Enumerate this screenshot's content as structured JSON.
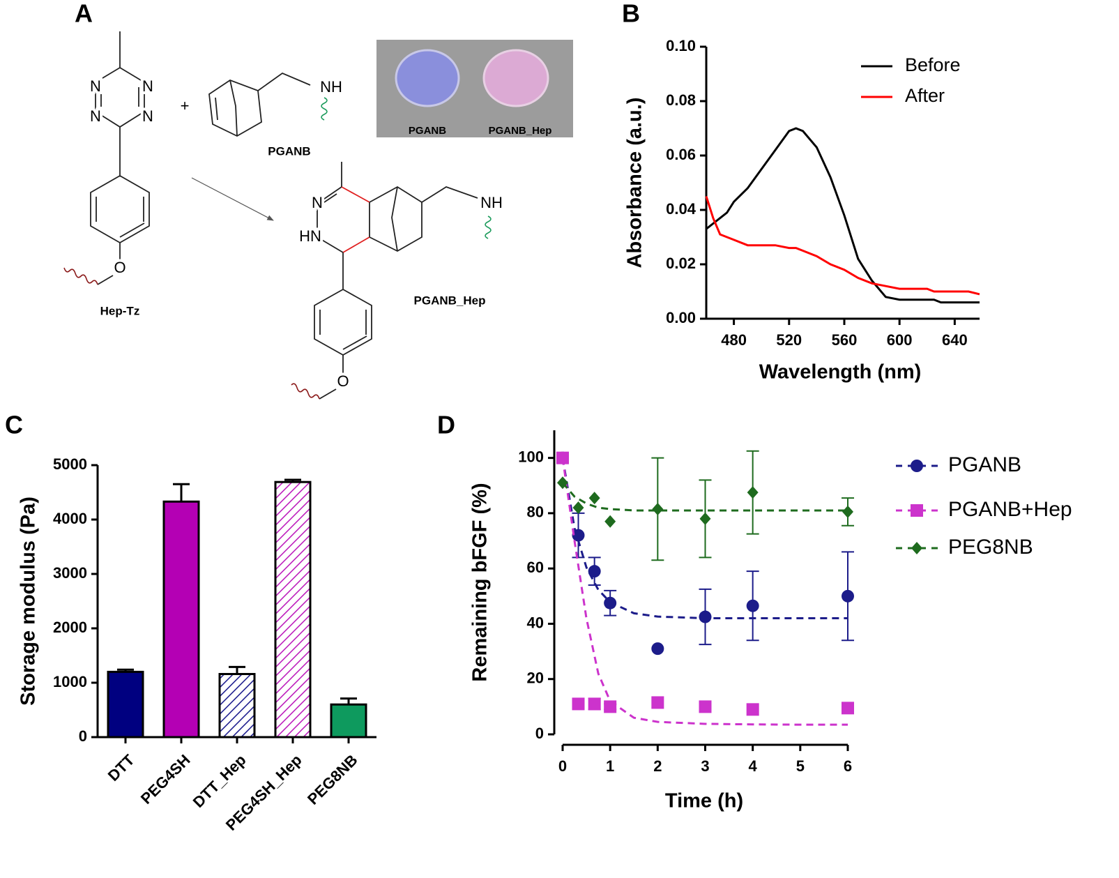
{
  "diagram": {
    "label": "A",
    "plus": "+",
    "reactant_1": "Hep-Tz",
    "reactant_2": "PGANB",
    "product": "PGANB_Hep",
    "photo_labels": [
      "PGANB",
      "PGANB_Hep"
    ],
    "atoms": {
      "tetrazine": [
        "N",
        "N",
        "N",
        "N"
      ],
      "reactant_1_oxygen": "O",
      "reactant_2_amine": "NH",
      "product_ring": [
        "N",
        "HN"
      ],
      "product_amine": "NH",
      "product_oxygen": "O"
    }
  },
  "chart_data": [
    {
      "type": "line",
      "panel": "B",
      "xlabel": "Wavelength (nm)",
      "ylabel": "Absorbance (a.u.)",
      "x": [
        460,
        465,
        470,
        475,
        480,
        490,
        500,
        510,
        520,
        525,
        530,
        540,
        550,
        560,
        570,
        580,
        590,
        600,
        620,
        625,
        630,
        650,
        658
      ],
      "xlim": [
        460,
        658
      ],
      "xticks": [
        480,
        520,
        560,
        600,
        640
      ],
      "ylim": [
        0,
        0.1
      ],
      "yticks": [
        {
          "value": 0,
          "label": "0.00"
        },
        {
          "value": 0.02,
          "label": "0.02"
        },
        {
          "value": 0.04,
          "label": "0.04"
        },
        {
          "value": 0.06,
          "label": "0.06"
        },
        {
          "value": 0.08,
          "label": "0.08"
        },
        {
          "value": 0.1,
          "label": "0.10"
        }
      ],
      "legend": "upper right",
      "series": [
        {
          "name": "Before",
          "color": "#000000",
          "values": [
            0.033,
            0.035,
            0.037,
            0.039,
            0.043,
            0.048,
            0.055,
            0.062,
            0.069,
            0.07,
            0.069,
            0.063,
            0.052,
            0.038,
            0.022,
            0.014,
            0.008,
            0.007,
            0.007,
            0.007,
            0.006,
            0.006,
            0.006
          ]
        },
        {
          "name": "After",
          "color": "#ff0000",
          "values": [
            0.045,
            0.037,
            0.031,
            0.03,
            0.029,
            0.027,
            0.027,
            0.027,
            0.026,
            0.026,
            0.025,
            0.023,
            0.02,
            0.018,
            0.015,
            0.013,
            0.012,
            0.011,
            0.011,
            0.01,
            0.01,
            0.01,
            0.009
          ]
        }
      ]
    },
    {
      "type": "bar",
      "panel": "C",
      "ylabel": "Storage modulus  (Pa)",
      "categories": [
        "DTT",
        "PEG4SH",
        "DTT_Hep",
        "PEG4SH_Hep",
        "PEG8NB"
      ],
      "values": [
        1200,
        4330,
        1160,
        4690,
        600
      ],
      "errors": [
        40,
        320,
        130,
        40,
        110
      ],
      "colors": [
        "#000080",
        "#b400b4",
        "#000080",
        "#b400b4",
        "#0e9a5e"
      ],
      "hatch": [
        false,
        false,
        true,
        true,
        false
      ],
      "ylim": [
        0,
        5000
      ],
      "yticks": [
        0,
        1000,
        2000,
        3000,
        4000,
        5000
      ]
    },
    {
      "type": "scatter",
      "panel": "D",
      "xlabel": "Time (h)",
      "ylabel": "Remaining bFGF (%)",
      "x": [
        0,
        0.33,
        0.67,
        1,
        2,
        3,
        4,
        6
      ],
      "xlim": [
        0,
        6
      ],
      "xticks": [
        0,
        1,
        2,
        3,
        4,
        5,
        6
      ],
      "ylim": [
        0,
        110
      ],
      "yticks": [
        0,
        20,
        40,
        60,
        80,
        100
      ],
      "legend": "right",
      "fit_x": [
        0,
        0.25,
        0.5,
        0.75,
        1,
        1.5,
        2,
        3,
        4,
        5,
        6
      ],
      "series": [
        {
          "name": "PGANB",
          "color": "#1c1c8a",
          "marker": "circle",
          "values": [
            100,
            72,
            59,
            47.5,
            31,
            42.5,
            46.5,
            50
          ],
          "errors": [
            0,
            8,
            5,
            4.5,
            0,
            10,
            12.5,
            16
          ],
          "fit_values": [
            100,
            74.6,
            60.4,
            52.3,
            47.8,
            43.8,
            42.6,
            42,
            42,
            42,
            42
          ]
        },
        {
          "name": "PGANB+Hep",
          "color": "#cc33cc",
          "marker": "square",
          "values": [
            100,
            11,
            11,
            10,
            11.5,
            10,
            9,
            9.5
          ],
          "errors": [
            0,
            0,
            2,
            1,
            0,
            0,
            0,
            0
          ],
          "fit_values": [
            100,
            70,
            42,
            22,
            12,
            6,
            4.5,
            3.8,
            3.6,
            3.5,
            3.5
          ]
        },
        {
          "name": "PEG8NB",
          "color": "#1e6b1e",
          "marker": "diamond",
          "values": [
            91,
            82,
            85.5,
            77,
            81.5,
            78,
            87.5,
            80.5
          ],
          "errors": [
            0,
            0,
            0,
            0,
            18.5,
            14,
            15,
            5
          ],
          "fit_values": [
            91,
            86,
            83.5,
            82,
            81.5,
            81,
            81,
            81,
            81,
            81,
            81
          ]
        }
      ]
    }
  ]
}
